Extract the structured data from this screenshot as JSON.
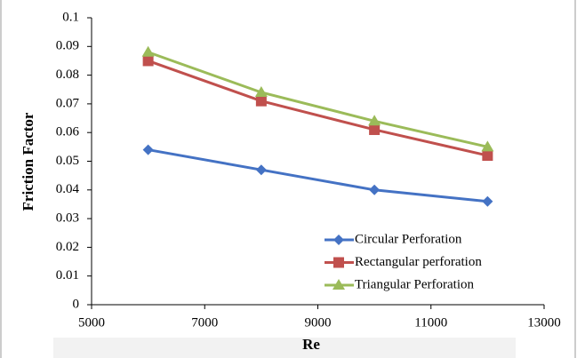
{
  "chart_data": {
    "type": "line",
    "xlabel": "Re",
    "ylabel": "Friction Factor",
    "x": [
      6000,
      8000,
      10000,
      12000
    ],
    "series": [
      {
        "name": "Circular Perforation",
        "color": "#4472c4",
        "marker": "diamond",
        "values": [
          0.054,
          0.047,
          0.04,
          0.036
        ]
      },
      {
        "name": "Rectangular perforation",
        "color": "#c0504d",
        "marker": "square",
        "values": [
          0.085,
          0.071,
          0.061,
          0.052
        ]
      },
      {
        "name": "Triangular Perforation",
        "color": "#9bbb59",
        "marker": "triangle",
        "values": [
          0.088,
          0.074,
          0.064,
          0.055
        ]
      }
    ],
    "xlim": [
      5000,
      13000
    ],
    "xticks": [
      5000,
      7000,
      9000,
      11000,
      13000
    ],
    "ylim": [
      0,
      0.1
    ],
    "yticks": [
      0,
      0.01,
      0.02,
      0.03,
      0.04,
      0.05,
      0.06,
      0.07,
      0.08,
      0.09,
      0.1
    ],
    "grid": false,
    "legend": "lower right"
  }
}
